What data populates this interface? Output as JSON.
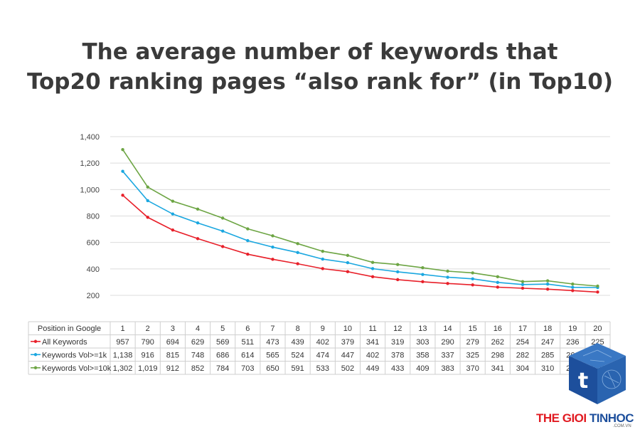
{
  "chart_data": {
    "type": "line",
    "title_lines": [
      "The average number of keywords that",
      "Top20 ranking pages “also rank for” (in Top10)"
    ],
    "categories": [
      "1",
      "2",
      "3",
      "4",
      "5",
      "6",
      "7",
      "8",
      "9",
      "10",
      "11",
      "12",
      "13",
      "14",
      "15",
      "16",
      "17",
      "18",
      "19",
      "20"
    ],
    "xlabel": "Position in Google",
    "ylim": [
      200,
      1400
    ],
    "yticks": [
      "200",
      "400",
      "600",
      "800",
      "1,000",
      "1,200",
      "1,400"
    ],
    "ytick_values": [
      200,
      400,
      600,
      800,
      1000,
      1200,
      1400
    ],
    "grid": true,
    "series": [
      {
        "name": "All Keywords",
        "color": "#e8202a",
        "values": [
          957,
          790,
          694,
          629,
          569,
          511,
          473,
          439,
          402,
          379,
          341,
          319,
          303,
          290,
          279,
          262,
          254,
          247,
          236,
          225
        ],
        "labels": [
          "957",
          "790",
          "694",
          "629",
          "569",
          "511",
          "473",
          "439",
          "402",
          "379",
          "341",
          "319",
          "303",
          "290",
          "279",
          "262",
          "254",
          "247",
          "236",
          "225"
        ]
      },
      {
        "name": "Keywords Vol>=1k",
        "color": "#1aa7e0",
        "values": [
          1138,
          916,
          815,
          748,
          686,
          614,
          565,
          524,
          474,
          447,
          402,
          378,
          358,
          337,
          325,
          298,
          282,
          285,
          261,
          259
        ],
        "labels": [
          "1,138",
          "916",
          "815",
          "748",
          "686",
          "614",
          "565",
          "524",
          "474",
          "447",
          "402",
          "378",
          "358",
          "337",
          "325",
          "298",
          "282",
          "285",
          "261",
          "259"
        ]
      },
      {
        "name": "Keywords Vol>=10k",
        "color": "#6da544",
        "values": [
          1302,
          1019,
          912,
          852,
          784,
          703,
          650,
          591,
          533,
          502,
          449,
          433,
          409,
          383,
          370,
          341,
          304,
          310,
          286,
          270
        ],
        "labels": [
          "1,302",
          "1,019",
          "912",
          "852",
          "784",
          "703",
          "650",
          "591",
          "533",
          "502",
          "449",
          "433",
          "409",
          "383",
          "370",
          "341",
          "304",
          "310",
          "286",
          "270"
        ]
      }
    ]
  },
  "watermark": {
    "brand_red": "THE GIOI",
    "brand_blue": "TINHOC",
    "brand_domain": ".COM.VN",
    "logo_letter": "t"
  }
}
